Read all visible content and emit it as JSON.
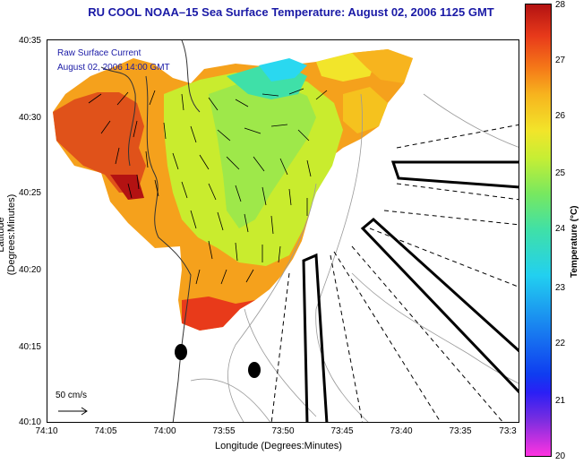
{
  "header": {
    "title": "RU COOL  NOAA–15  Sea Surface Temperature:  August 02, 2006 1125 GMT"
  },
  "overlay": {
    "line1": "Raw Surface Current",
    "line2": "August 02, 2006 14:00 GMT"
  },
  "axes": {
    "xlabel": "Longitude (Degrees:Minutes)",
    "ylabel": "Latitude (Degrees:Minutes)",
    "xticks": [
      "74:10",
      "74:05",
      "74:00",
      "73:55",
      "73:50",
      "73:45",
      "73:40",
      "73:35",
      "73:3"
    ],
    "yticks": [
      "40:35",
      "40:30",
      "40:25",
      "40:20",
      "40:15",
      "40:10"
    ]
  },
  "scale": {
    "label": "50 cm/s"
  },
  "colorbar": {
    "label": "Temperature (°C)",
    "ticks": [
      "28",
      "27",
      "26",
      "25",
      "24",
      "23",
      "22",
      "21",
      "20"
    ],
    "range": [
      20,
      28
    ]
  },
  "colors": {
    "title": "#1a1aa6",
    "hot": "#c81a14",
    "warm": "#f5a11c",
    "mid": "#c9ec2e",
    "cool": "#2ad8f0"
  }
}
